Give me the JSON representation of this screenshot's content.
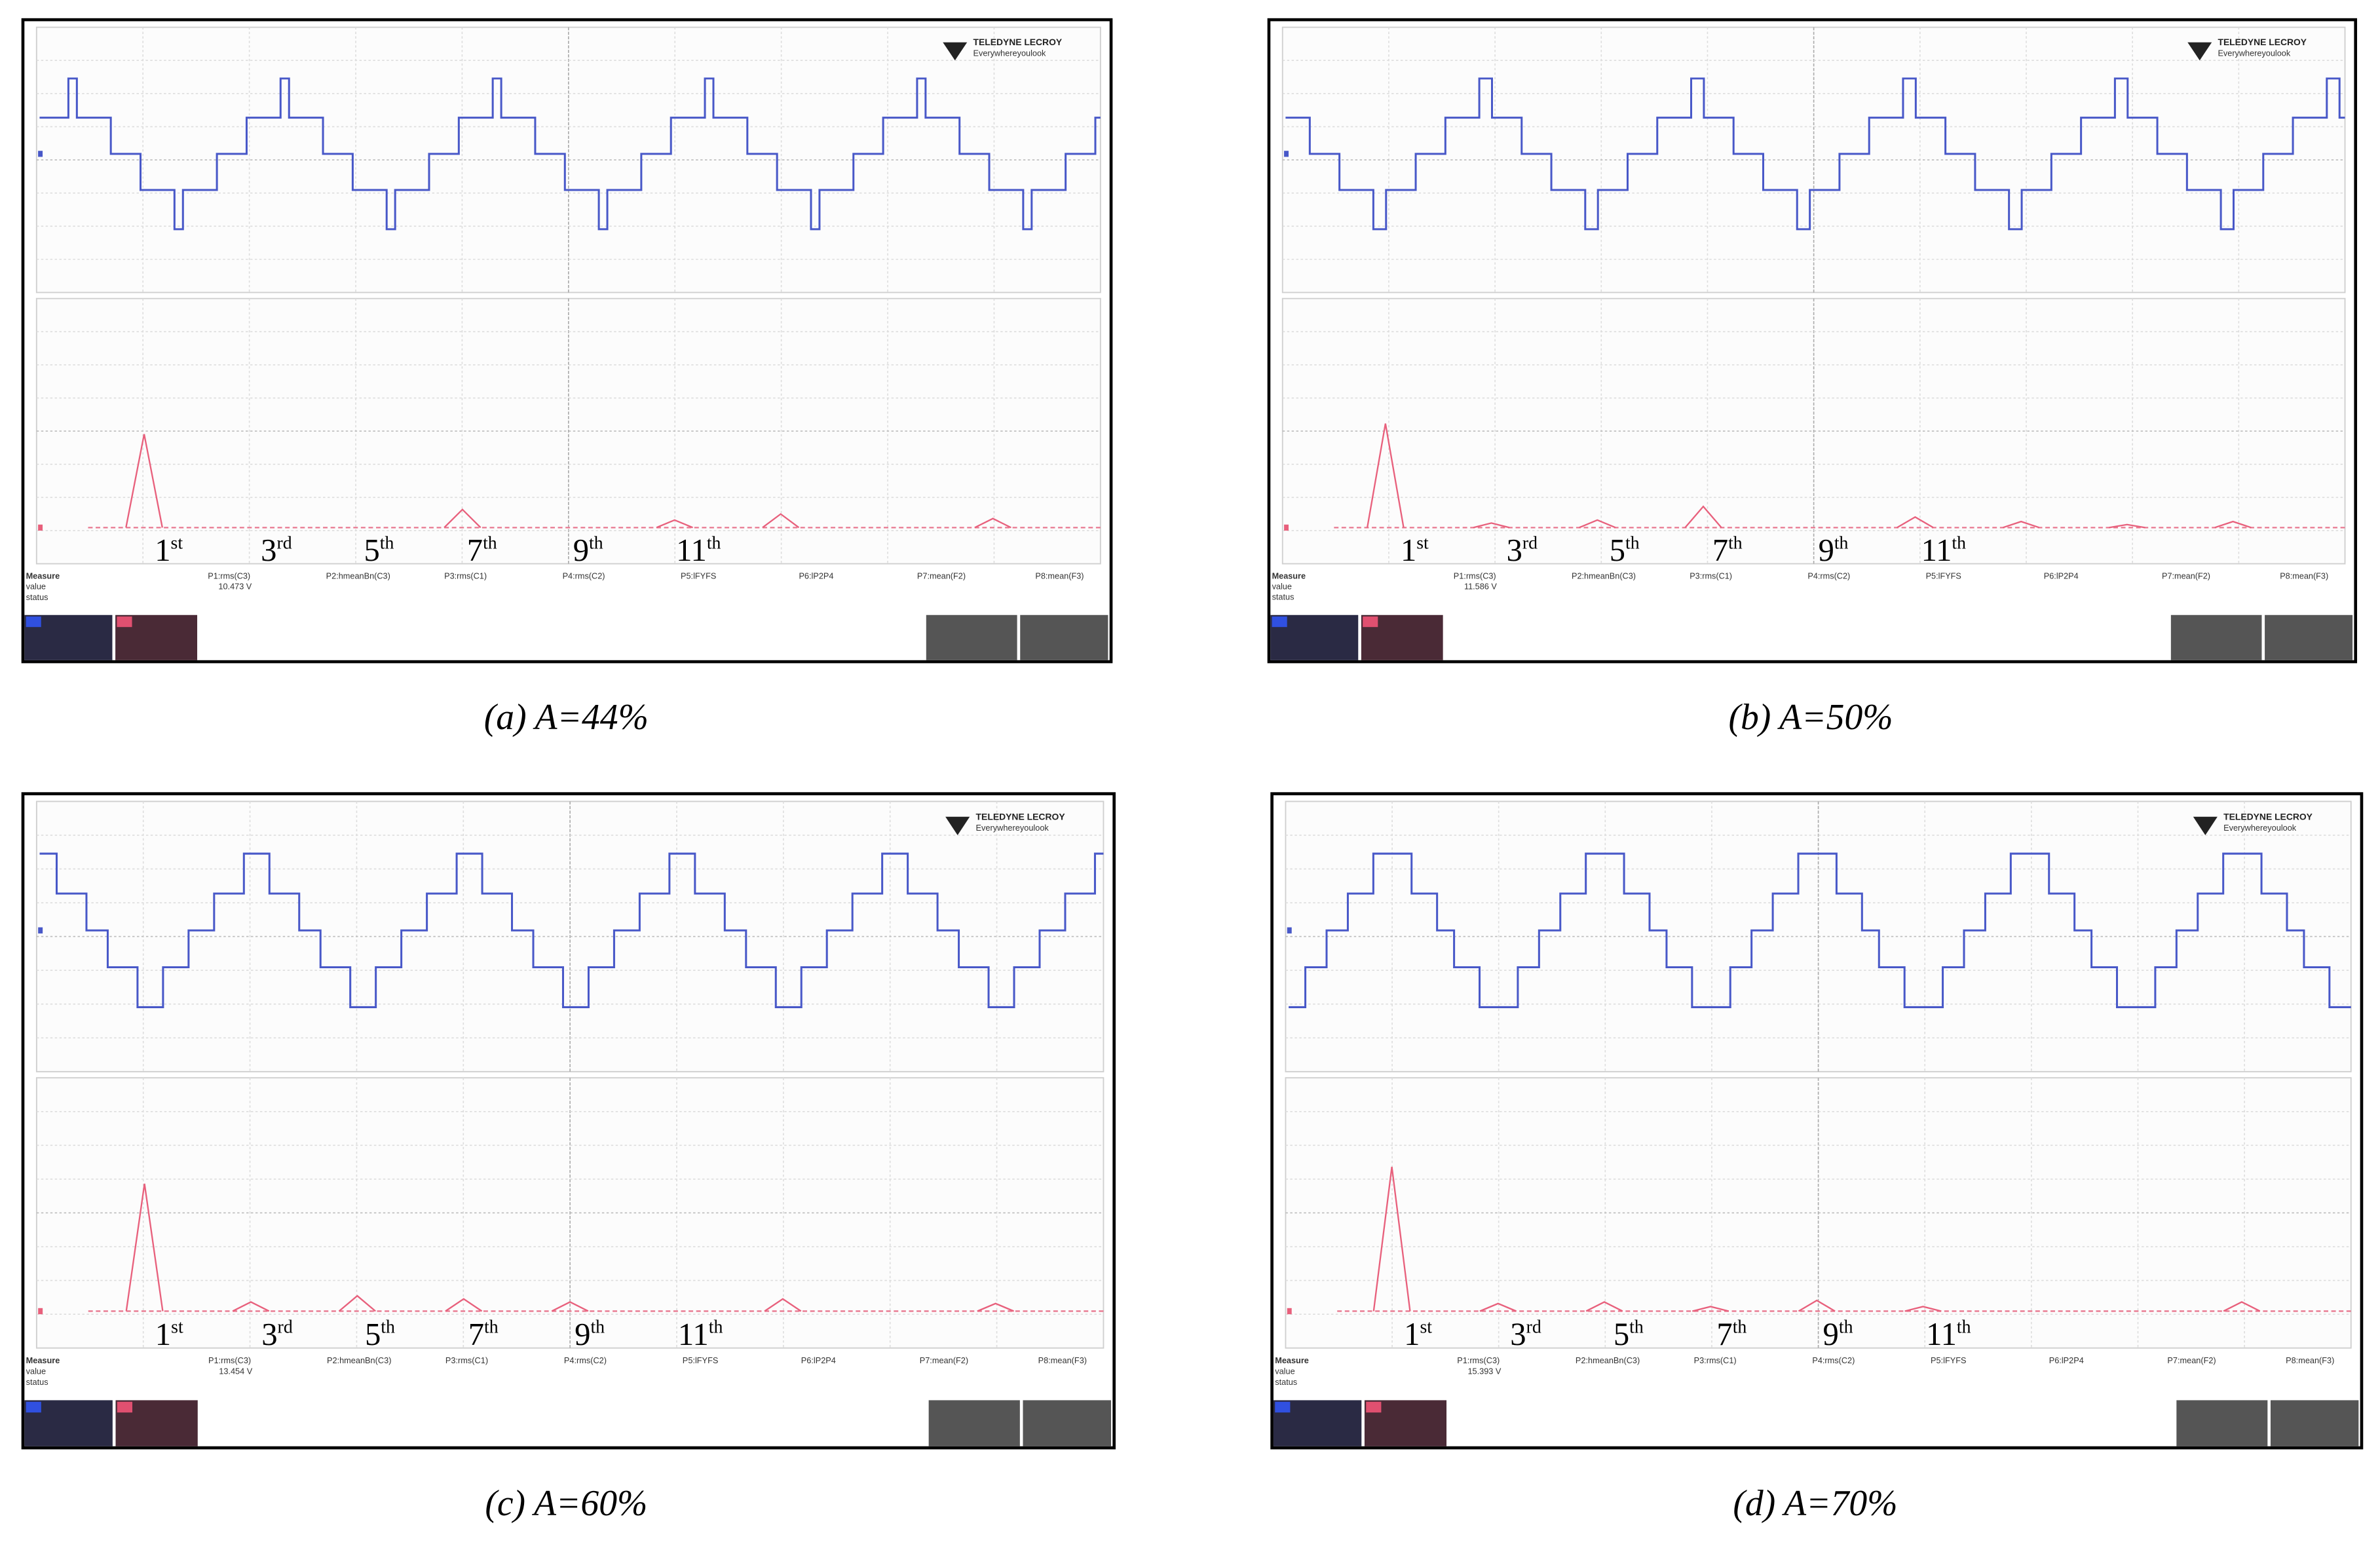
{
  "figure": {
    "panels": [
      {
        "caption": "(a) A=44%",
        "harmonic_labels": [
          {
            "number": "1",
            "suffix": "st"
          },
          {
            "number": "3",
            "suffix": "rd"
          },
          {
            "number": "5",
            "suffix": "th"
          },
          {
            "number": "7",
            "suffix": "th"
          },
          {
            "number": "9",
            "suffix": "th"
          },
          {
            "number": "11",
            "suffix": "th"
          }
        ],
        "scope": {
          "brand": "TELEDYNE LECROY",
          "tagline": "Everywhereyoulook",
          "measure": "Measure",
          "value_label": "value",
          "status_label": "status",
          "params": [
            "P1:rms(C3)",
            "P2:hmeanBn(C3)",
            "P3:rms(C1)",
            "P4:rms(C2)",
            "P5:lFYFS",
            "P6:lP2P4",
            "P7:mean(F2)",
            "P8:mean(F3)"
          ],
          "reading": "10.473 V"
        }
      },
      {
        "caption": "(b) A=50%",
        "harmonic_labels": [
          {
            "number": "1",
            "suffix": "st"
          },
          {
            "number": "3",
            "suffix": "rd"
          },
          {
            "number": "5",
            "suffix": "th"
          },
          {
            "number": "7",
            "suffix": "th"
          },
          {
            "number": "9",
            "suffix": "th"
          },
          {
            "number": "11",
            "suffix": "th"
          }
        ],
        "scope": {
          "brand": "TELEDYNE LECROY",
          "tagline": "Everywhereyoulook",
          "measure": "Measure",
          "value_label": "value",
          "status_label": "status",
          "params": [
            "P1:rms(C3)",
            "P2:hmeanBn(C3)",
            "P3:rms(C1)",
            "P4:rms(C2)",
            "P5:lFYFS",
            "P6:lP2P4",
            "P7:mean(F2)",
            "P8:mean(F3)"
          ],
          "reading": "11.586 V"
        }
      },
      {
        "caption": "(c) A=60%",
        "harmonic_labels": [
          {
            "number": "1",
            "suffix": "st"
          },
          {
            "number": "3",
            "suffix": "rd"
          },
          {
            "number": "5",
            "suffix": "th"
          },
          {
            "number": "7",
            "suffix": "th"
          },
          {
            "number": "9",
            "suffix": "th"
          },
          {
            "number": "11",
            "suffix": "th"
          }
        ],
        "scope": {
          "brand": "TELEDYNE LECROY",
          "tagline": "Everywhereyoulook",
          "measure": "Measure",
          "value_label": "value",
          "status_label": "status",
          "params": [
            "P1:rms(C3)",
            "P2:hmeanBn(C3)",
            "P3:rms(C1)",
            "P4:rms(C2)",
            "P5:lFYFS",
            "P6:lP2P4",
            "P7:mean(F2)",
            "P8:mean(F3)"
          ],
          "reading": "13.454 V"
        }
      },
      {
        "caption": "(d) A=70%",
        "harmonic_labels": [
          {
            "number": "1",
            "suffix": "st"
          },
          {
            "number": "3",
            "suffix": "rd"
          },
          {
            "number": "5",
            "suffix": "th"
          },
          {
            "number": "7",
            "suffix": "th"
          },
          {
            "number": "9",
            "suffix": "th"
          },
          {
            "number": "11",
            "suffix": "th"
          }
        ],
        "scope": {
          "brand": "TELEDYNE LECROY",
          "tagline": "Everywhereyoulook",
          "measure": "Measure",
          "value_label": "value",
          "status_label": "status",
          "params": [
            "P1:rms(C3)",
            "P2:hmeanBn(C3)",
            "P3:rms(C1)",
            "P4:rms(C2)",
            "P5:lFYFS",
            "P6:lP2P4",
            "P7:mean(F2)",
            "P8:mean(F3)"
          ],
          "reading": "15.393 V"
        }
      }
    ]
  }
}
